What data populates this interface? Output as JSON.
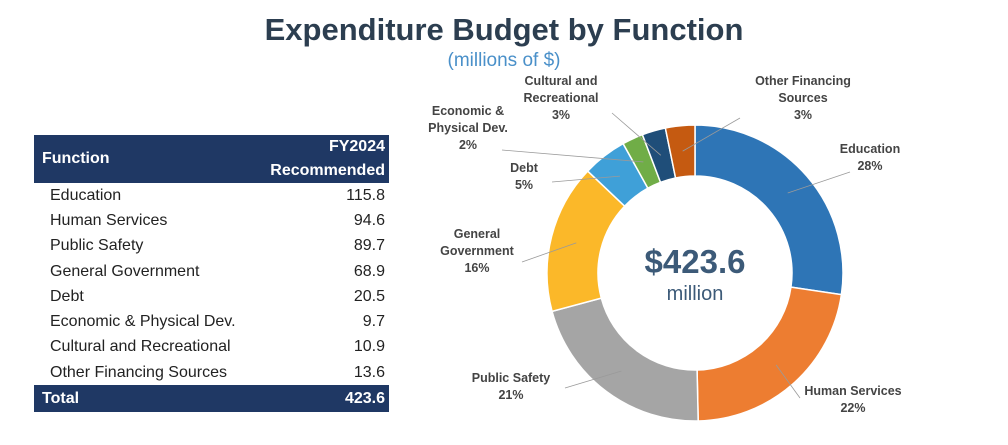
{
  "title": "Expenditure Budget by Function",
  "subtitle": "(millions of $)",
  "table": {
    "header_function": "Function",
    "header_year": "FY2024",
    "header_recommended": "Recommended",
    "rows": [
      {
        "label": "Education",
        "value": "115.8"
      },
      {
        "label": "Human Services",
        "value": "94.6"
      },
      {
        "label": "Public Safety",
        "value": "89.7"
      },
      {
        "label": "General Government",
        "value": "68.9"
      },
      {
        "label": "Debt",
        "value": "20.5"
      },
      {
        "label": "Economic & Physical Dev.",
        "value": "9.7"
      },
      {
        "label": "Cultural and Recreational",
        "value": "10.9"
      },
      {
        "label": "Other Financing Sources",
        "value": "13.6"
      }
    ],
    "total_label": "Total",
    "total_value": "423.6"
  },
  "chart_data": {
    "type": "pie",
    "subtype": "donut",
    "center_value": "$423.6",
    "center_unit": "million",
    "slices": [
      {
        "label_lines": [
          "Education"
        ],
        "pct_label": "28%",
        "value": 115.8,
        "color": "#2e75b6"
      },
      {
        "label_lines": [
          "Human Services"
        ],
        "pct_label": "22%",
        "value": 94.6,
        "color": "#ed7d31"
      },
      {
        "label_lines": [
          "Public Safety"
        ],
        "pct_label": "21%",
        "value": 89.7,
        "color": "#a5a5a5"
      },
      {
        "label_lines": [
          "General",
          "Government"
        ],
        "pct_label": "16%",
        "value": 68.9,
        "color": "#fbb829"
      },
      {
        "label_lines": [
          "Debt"
        ],
        "pct_label": "5%",
        "value": 20.5,
        "color": "#3fa0d8"
      },
      {
        "label_lines": [
          "Economic &",
          "Physical Dev."
        ],
        "pct_label": "2%",
        "value": 9.7,
        "color": "#70ad47"
      },
      {
        "label_lines": [
          "Cultural and",
          "Recreational"
        ],
        "pct_label": "3%",
        "value": 10.9,
        "color": "#1f4e79"
      },
      {
        "label_lines": [
          "Other Financing",
          "Sources"
        ],
        "pct_label": "3%",
        "value": 13.6,
        "color": "#c55a11"
      }
    ]
  }
}
